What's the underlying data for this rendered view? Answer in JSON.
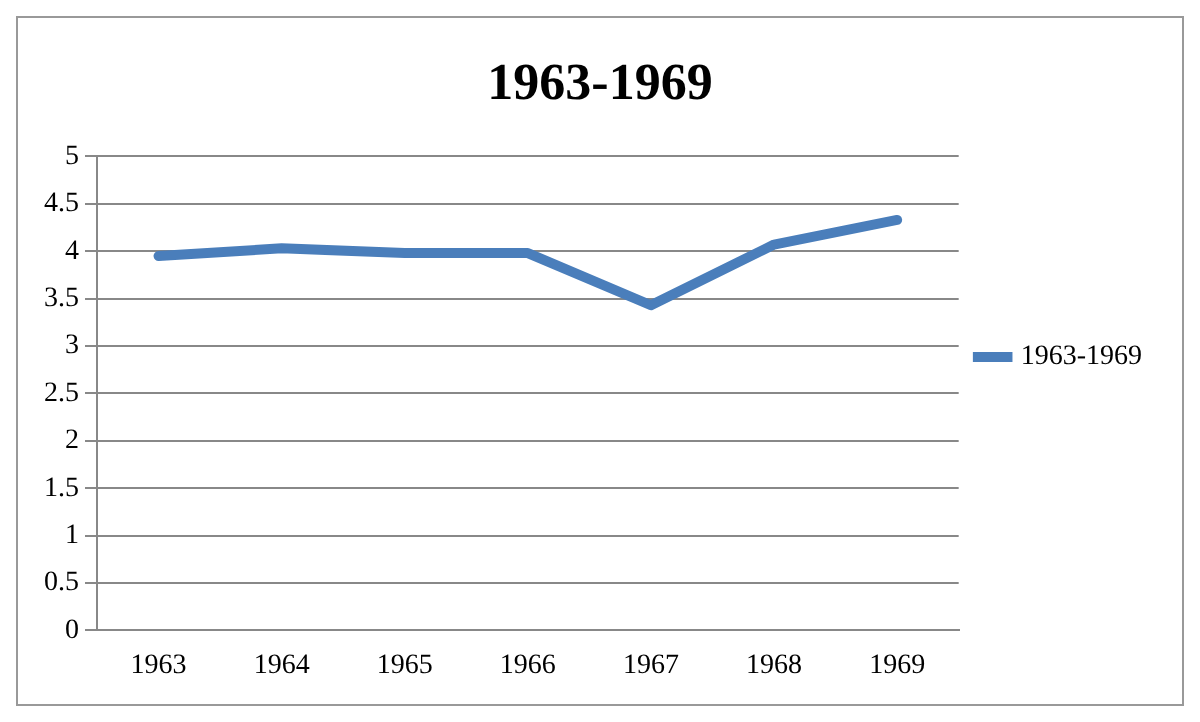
{
  "chart_data": {
    "type": "line",
    "title": "1963-1969",
    "categories": [
      "1963",
      "1964",
      "1965",
      "1966",
      "1967",
      "1968",
      "1969"
    ],
    "series": [
      {
        "name": "1963-1969",
        "color": "#4a7ebb",
        "values": [
          3.95,
          4.03,
          3.98,
          3.98,
          3.43,
          4.07,
          4.33
        ]
      }
    ],
    "ylim": [
      0,
      5
    ],
    "yticks": [
      0,
      0.5,
      1,
      1.5,
      2,
      2.5,
      3,
      3.5,
      4,
      4.5,
      5
    ],
    "grid": "y",
    "legend": "right",
    "marker": "none",
    "line_style": "solid"
  }
}
